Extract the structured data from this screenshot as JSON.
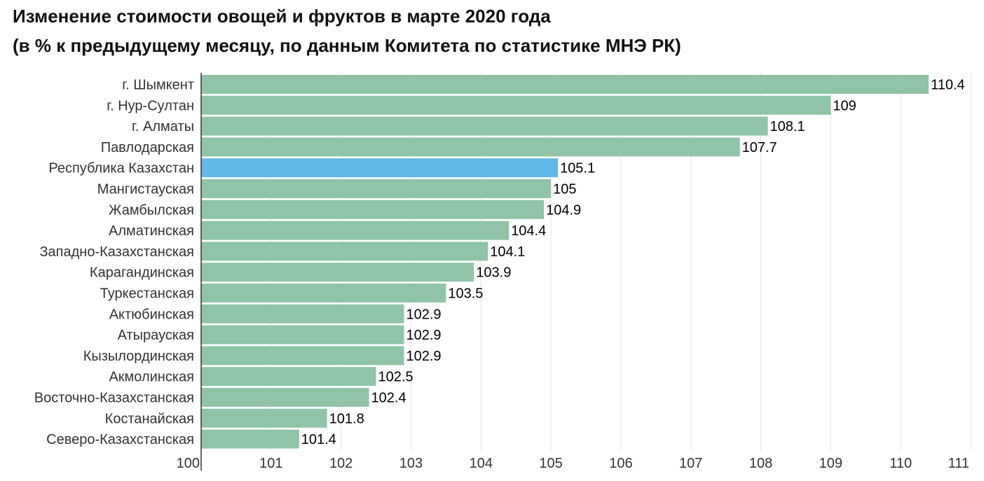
{
  "chart_data": {
    "type": "bar",
    "orientation": "horizontal",
    "title": "Изменение стоимости овощей и фруктов в марте 2020 года",
    "subtitle": "(в % к предыдущему месяцу, по данным Комитета по статистике МНЭ РК)",
    "xlabel": "",
    "ylabel": "",
    "xlim": [
      100,
      111
    ],
    "ticks": [
      100,
      101,
      102,
      103,
      104,
      105,
      106,
      107,
      108,
      109,
      110,
      111
    ],
    "grid": true,
    "categories": [
      "г. Шымкент",
      "г. Нур-Султан",
      "г. Алматы",
      "Павлодарская",
      "Республика Казахстан",
      "Мангистауская",
      "Жамбылская",
      "Алматинская",
      "Западно-Казахстанская",
      "Карагандинская",
      "Туркестанская",
      "Актюбинская",
      "Атырауская",
      "Кызылординская",
      "Акмолинская",
      "Восточно-Казахстанская",
      "Костанайская",
      "Северо-Казахстанская"
    ],
    "values": [
      110.4,
      109,
      108.1,
      107.7,
      105.1,
      105,
      104.9,
      104.4,
      104.1,
      103.9,
      103.5,
      102.9,
      102.9,
      102.9,
      102.5,
      102.4,
      101.8,
      101.4
    ],
    "value_labels": [
      "110.4",
      "109",
      "108.1",
      "107.7",
      "105.1",
      "105",
      "104.9",
      "104.4",
      "104.1",
      "103.9",
      "103.5",
      "102.9",
      "102.9",
      "102.9",
      "102.5",
      "102.4",
      "101.8",
      "101.4"
    ],
    "highlight_category": "Республика Казахстан",
    "colors": {
      "bar": "#8fc4a8",
      "highlight": "#62b8e6",
      "grid": "#e2e2e2",
      "axis": "#333333"
    }
  }
}
